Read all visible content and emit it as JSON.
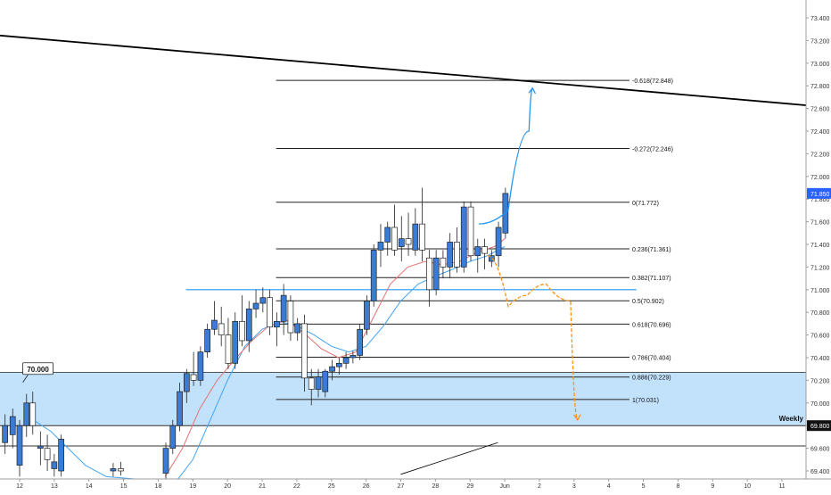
{
  "chart_data": {
    "type": "candlestick",
    "title": "",
    "xlabel": "",
    "ylabel": "",
    "ylim": [
      69.35,
      73.55
    ],
    "y_ticks": [
      "73.400",
      "73.200",
      "73.000",
      "72.800",
      "72.600",
      "72.400",
      "72.200",
      "72.000",
      "71.800",
      "71.600",
      "71.400",
      "71.200",
      "71.000",
      "70.800",
      "70.600",
      "70.400",
      "70.200",
      "70.000",
      "69.800",
      "69.600",
      "69.400"
    ],
    "x_ticks": [
      {
        "label": "12",
        "t": 0.5
      },
      {
        "label": "13",
        "t": 1.5
      },
      {
        "label": "14",
        "t": 2.5
      },
      {
        "label": "15",
        "t": 3.5
      },
      {
        "label": "18",
        "t": 4.5
      },
      {
        "label": "19",
        "t": 5.5
      },
      {
        "label": "20",
        "t": 6.5
      },
      {
        "label": "21",
        "t": 7.5
      },
      {
        "label": "22",
        "t": 8.5
      },
      {
        "label": "25",
        "t": 9.5
      },
      {
        "label": "26",
        "t": 10.5
      },
      {
        "label": "27",
        "t": 11.5
      },
      {
        "label": "28",
        "t": 12.5
      },
      {
        "label": "29",
        "t": 13.5
      },
      {
        "label": "Jun",
        "t": 14.5
      },
      {
        "label": "2",
        "t": 15.5
      },
      {
        "label": "3",
        "t": 16.5
      },
      {
        "label": "4",
        "t": 17.5
      },
      {
        "label": "5",
        "t": 18.5
      },
      {
        "label": "8",
        "t": 19.5
      },
      {
        "label": "9",
        "t": 20.5
      },
      {
        "label": "10",
        "t": 21.5
      },
      {
        "label": "11",
        "t": 22.5
      }
    ],
    "current_price": {
      "label": "71.850",
      "value": 71.85
    },
    "weekly_level": {
      "label": "Weekly",
      "price_label": "69.800",
      "value": 69.8
    },
    "demand_zone": {
      "from": 69.8,
      "to": 70.27
    },
    "zone_bottom_line": 69.62,
    "resistance_line": {
      "from": [
        -0.3,
        73.25
      ],
      "to": [
        23.5,
        72.62
      ]
    },
    "horizontal_level": {
      "value": 71.0,
      "t0": 5.3,
      "t1": 18.3
    },
    "small_trendline": {
      "from": [
        11.5,
        69.37
      ],
      "to": [
        14.3,
        69.65
      ]
    },
    "fibonacci": {
      "t0": 7.9,
      "t1": 18.1,
      "levels": [
        {
          "label": "-0.618(72.848)",
          "value": 72.848
        },
        {
          "label": "-0.272(72.246)",
          "value": 72.246
        },
        {
          "label": "0(71.772)",
          "value": 71.772
        },
        {
          "label": "0.236(71.361)",
          "value": 71.361
        },
        {
          "label": "0.382(71.107)",
          "value": 71.107
        },
        {
          "label": "0.5(70.902)",
          "value": 70.902
        },
        {
          "label": "0.618(70.696)",
          "value": 70.696
        },
        {
          "label": "0.786(70.404)",
          "value": 70.404
        },
        {
          "label": "0.886(70.229)",
          "value": 70.229
        },
        {
          "label": "1(70.031)",
          "value": 70.031
        }
      ]
    },
    "annotations": [
      {
        "label": "70.000",
        "t": 0.85,
        "value": 70.15
      }
    ],
    "projections": [
      {
        "name": "bullish",
        "color": "#2196f3",
        "points": [
          [
            13.75,
            71.58
          ],
          [
            14.6,
            71.7
          ],
          [
            15.2,
            72.4
          ],
          [
            15.3,
            72.78
          ]
        ]
      },
      {
        "name": "bearish",
        "color": "#f7931a",
        "points": [
          [
            14.0,
            71.3
          ],
          [
            14.6,
            70.85
          ],
          [
            15.15,
            70.95
          ],
          [
            15.7,
            71.05
          ],
          [
            16.4,
            70.9
          ],
          [
            16.6,
            69.85
          ]
        ]
      }
    ],
    "candles": [
      {
        "t": 0.08,
        "o": 69.65,
        "h": 69.9,
        "l": 69.55,
        "c": 69.8
      },
      {
        "t": 0.3,
        "o": 69.72,
        "h": 69.95,
        "l": 69.6,
        "c": 69.88
      },
      {
        "t": 0.5,
        "o": 69.45,
        "h": 69.85,
        "l": 69.35,
        "c": 69.8
      },
      {
        "t": 0.7,
        "o": 69.8,
        "h": 70.08,
        "l": 69.7,
        "c": 70.0
      },
      {
        "t": 0.88,
        "o": 70.0,
        "h": 70.1,
        "l": 69.72,
        "c": 69.8
      },
      {
        "t": 1.1,
        "o": 69.6,
        "h": 69.75,
        "l": 69.45,
        "c": 69.62
      },
      {
        "t": 1.3,
        "o": 69.6,
        "h": 69.72,
        "l": 69.4,
        "c": 69.5
      },
      {
        "t": 1.5,
        "o": 69.42,
        "h": 69.55,
        "l": 69.35,
        "c": 69.48
      },
      {
        "t": 1.7,
        "o": 69.4,
        "h": 69.72,
        "l": 69.35,
        "c": 69.68
      },
      {
        "t": 3.2,
        "o": 69.4,
        "h": 69.47,
        "l": 69.35,
        "c": 69.42
      },
      {
        "t": 3.42,
        "o": 69.42,
        "h": 69.48,
        "l": 69.36,
        "c": 69.4
      },
      {
        "t": 4.72,
        "o": 69.38,
        "h": 69.65,
        "l": 69.3,
        "c": 69.6
      },
      {
        "t": 4.92,
        "o": 69.6,
        "h": 69.85,
        "l": 69.55,
        "c": 69.8
      },
      {
        "t": 5.12,
        "o": 69.8,
        "h": 70.18,
        "l": 69.75,
        "c": 70.1
      },
      {
        "t": 5.32,
        "o": 70.1,
        "h": 70.3,
        "l": 70.0,
        "c": 70.26
      },
      {
        "t": 5.52,
        "o": 70.25,
        "h": 70.45,
        "l": 70.15,
        "c": 70.2
      },
      {
        "t": 5.72,
        "o": 70.2,
        "h": 70.5,
        "l": 70.15,
        "c": 70.45
      },
      {
        "t": 5.92,
        "o": 70.45,
        "h": 70.7,
        "l": 70.4,
        "c": 70.65
      },
      {
        "t": 6.12,
        "o": 70.65,
        "h": 70.9,
        "l": 70.6,
        "c": 70.73
      },
      {
        "t": 6.32,
        "o": 70.7,
        "h": 70.85,
        "l": 70.5,
        "c": 70.6
      },
      {
        "t": 6.52,
        "o": 70.6,
        "h": 70.75,
        "l": 70.3,
        "c": 70.35
      },
      {
        "t": 6.72,
        "o": 70.35,
        "h": 70.8,
        "l": 70.3,
        "c": 70.72
      },
      {
        "t": 6.92,
        "o": 70.72,
        "h": 70.95,
        "l": 70.5,
        "c": 70.55
      },
      {
        "t": 7.12,
        "o": 70.55,
        "h": 70.9,
        "l": 70.45,
        "c": 70.83
      },
      {
        "t": 7.32,
        "o": 70.83,
        "h": 71.0,
        "l": 70.75,
        "c": 70.88
      },
      {
        "t": 7.52,
        "o": 70.88,
        "h": 71.02,
        "l": 70.8,
        "c": 70.93
      },
      {
        "t": 7.72,
        "o": 70.93,
        "h": 71.0,
        "l": 70.6,
        "c": 70.67
      },
      {
        "t": 7.92,
        "o": 70.67,
        "h": 70.8,
        "l": 70.5,
        "c": 70.72
      },
      {
        "t": 8.12,
        "o": 70.72,
        "h": 71.05,
        "l": 70.6,
        "c": 70.95
      },
      {
        "t": 8.32,
        "o": 70.9,
        "h": 70.95,
        "l": 70.55,
        "c": 70.62
      },
      {
        "t": 8.52,
        "o": 70.62,
        "h": 70.75,
        "l": 70.55,
        "c": 70.7
      },
      {
        "t": 8.72,
        "o": 70.7,
        "h": 70.78,
        "l": 70.1,
        "c": 70.22
      },
      {
        "t": 8.92,
        "o": 70.22,
        "h": 70.3,
        "l": 69.98,
        "c": 70.12
      },
      {
        "t": 9.12,
        "o": 70.12,
        "h": 70.3,
        "l": 70.05,
        "c": 70.23
      },
      {
        "t": 9.32,
        "o": 70.1,
        "h": 70.3,
        "l": 70.05,
        "c": 70.28
      },
      {
        "t": 9.52,
        "o": 70.28,
        "h": 70.38,
        "l": 70.2,
        "c": 70.32
      },
      {
        "t": 9.72,
        "o": 70.32,
        "h": 70.4,
        "l": 70.25,
        "c": 70.35
      },
      {
        "t": 9.92,
        "o": 70.35,
        "h": 70.45,
        "l": 70.3,
        "c": 70.4
      },
      {
        "t": 10.12,
        "o": 70.4,
        "h": 70.46,
        "l": 70.35,
        "c": 70.42
      },
      {
        "t": 10.32,
        "o": 70.42,
        "h": 70.7,
        "l": 70.38,
        "c": 70.65
      },
      {
        "t": 10.52,
        "o": 70.65,
        "h": 70.95,
        "l": 70.6,
        "c": 70.9
      },
      {
        "t": 10.72,
        "o": 70.9,
        "h": 71.4,
        "l": 70.85,
        "c": 71.35
      },
      {
        "t": 10.92,
        "o": 71.35,
        "h": 71.58,
        "l": 71.2,
        "c": 71.42
      },
      {
        "t": 11.12,
        "o": 71.42,
        "h": 71.6,
        "l": 71.3,
        "c": 71.55
      },
      {
        "t": 11.32,
        "o": 71.55,
        "h": 71.75,
        "l": 71.3,
        "c": 71.35
      },
      {
        "t": 11.52,
        "o": 71.38,
        "h": 71.65,
        "l": 71.25,
        "c": 71.45
      },
      {
        "t": 11.72,
        "o": 71.45,
        "h": 71.68,
        "l": 71.3,
        "c": 71.4
      },
      {
        "t": 11.92,
        "o": 71.35,
        "h": 71.72,
        "l": 71.3,
        "c": 71.58
      },
      {
        "t": 12.12,
        "o": 71.58,
        "h": 71.9,
        "l": 71.25,
        "c": 71.35
      },
      {
        "t": 12.32,
        "o": 71.28,
        "h": 71.35,
        "l": 70.85,
        "c": 71.0
      },
      {
        "t": 12.52,
        "o": 71.0,
        "h": 71.35,
        "l": 70.95,
        "c": 71.28
      },
      {
        "t": 12.72,
        "o": 71.28,
        "h": 71.35,
        "l": 71.1,
        "c": 71.2
      },
      {
        "t": 12.92,
        "o": 71.2,
        "h": 71.5,
        "l": 71.1,
        "c": 71.42
      },
      {
        "t": 13.12,
        "o": 71.42,
        "h": 71.55,
        "l": 71.15,
        "c": 71.2
      },
      {
        "t": 13.32,
        "o": 71.2,
        "h": 71.78,
        "l": 71.15,
        "c": 71.73
      },
      {
        "t": 13.52,
        "o": 71.73,
        "h": 71.78,
        "l": 71.25,
        "c": 71.3
      },
      {
        "t": 13.72,
        "o": 71.3,
        "h": 71.45,
        "l": 71.15,
        "c": 71.38
      },
      {
        "t": 13.92,
        "o": 71.38,
        "h": 71.45,
        "l": 71.18,
        "c": 71.32
      },
      {
        "t": 14.12,
        "o": 71.25,
        "h": 71.35,
        "l": 71.2,
        "c": 71.3
      },
      {
        "t": 14.32,
        "o": 71.3,
        "h": 71.6,
        "l": 71.2,
        "c": 71.55
      },
      {
        "t": 14.52,
        "o": 71.5,
        "h": 71.9,
        "l": 71.45,
        "c": 71.85
      }
    ],
    "ma_red": [
      [
        4.7,
        69.35
      ],
      [
        5.2,
        69.6
      ],
      [
        5.7,
        69.95
      ],
      [
        6.2,
        70.2
      ],
      [
        6.7,
        70.38
      ],
      [
        7.2,
        70.55
      ],
      [
        7.7,
        70.68
      ],
      [
        8.2,
        70.73
      ],
      [
        8.7,
        70.62
      ],
      [
        9.2,
        70.48
      ],
      [
        9.7,
        70.4
      ],
      [
        10.2,
        70.45
      ],
      [
        10.7,
        70.75
      ],
      [
        11.2,
        71.05
      ],
      [
        11.7,
        71.2
      ],
      [
        12.2,
        71.25
      ],
      [
        12.7,
        71.22
      ],
      [
        13.2,
        71.25
      ],
      [
        13.7,
        71.33
      ],
      [
        14.2,
        71.38
      ],
      [
        14.5,
        71.45
      ]
    ],
    "ma_blue": [
      [
        0.9,
        69.85
      ],
      [
        1.4,
        69.75
      ],
      [
        1.9,
        69.6
      ],
      [
        2.4,
        69.45
      ],
      [
        3.0,
        69.35
      ],
      [
        5.0,
        69.3
      ],
      [
        5.5,
        69.5
      ],
      [
        6.0,
        69.85
      ],
      [
        6.5,
        70.2
      ],
      [
        7.0,
        70.5
      ],
      [
        7.5,
        70.65
      ],
      [
        8.0,
        70.72
      ],
      [
        8.5,
        70.68
      ],
      [
        9.0,
        70.6
      ],
      [
        9.5,
        70.5
      ],
      [
        10.0,
        70.45
      ],
      [
        10.5,
        70.5
      ],
      [
        11.0,
        70.68
      ],
      [
        11.5,
        70.9
      ],
      [
        12.0,
        71.05
      ],
      [
        12.5,
        71.12
      ],
      [
        13.0,
        71.18
      ],
      [
        13.5,
        71.25
      ],
      [
        14.0,
        71.3
      ],
      [
        14.5,
        71.38
      ]
    ]
  }
}
